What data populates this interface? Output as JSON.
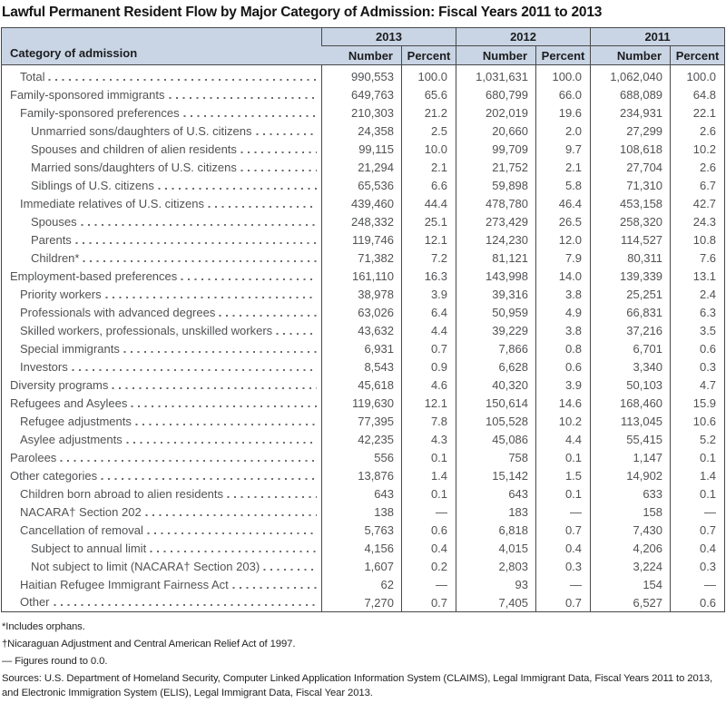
{
  "title": "Lawful Permanent Resident Flow by Major Category of Admission: Fiscal Years 2011 to 2013",
  "colors": {
    "header_bg": "#c9d5e4",
    "border": "#48494b",
    "body_text": "#515254",
    "title_text": "#141414"
  },
  "table": {
    "category_header": "Category of admission",
    "year_groups": [
      {
        "year": "2013",
        "number_label": "Number",
        "percent_label": "Percent"
      },
      {
        "year": "2012",
        "number_label": "Number",
        "percent_label": "Percent"
      },
      {
        "year": "2011",
        "number_label": "Number",
        "percent_label": "Percent"
      }
    ],
    "rows": [
      {
        "label": "Total",
        "indent": 1,
        "values": [
          "990,553",
          "100.0",
          "1,031,631",
          "100.0",
          "1,062,040",
          "100.0"
        ]
      },
      {
        "label": "Family-sponsored immigrants",
        "indent": 0,
        "values": [
          "649,763",
          "65.6",
          "680,799",
          "66.0",
          "688,089",
          "64.8"
        ]
      },
      {
        "label": "Family-sponsored preferences",
        "indent": 1,
        "values": [
          "210,303",
          "21.2",
          "202,019",
          "19.6",
          "234,931",
          "22.1"
        ]
      },
      {
        "label": "Unmarried sons/daughters of U.S. citizens",
        "indent": 2,
        "values": [
          "24,358",
          "2.5",
          "20,660",
          "2.0",
          "27,299",
          "2.6"
        ]
      },
      {
        "label": "Spouses and children of alien residents",
        "indent": 2,
        "values": [
          "99,115",
          "10.0",
          "99,709",
          "9.7",
          "108,618",
          "10.2"
        ]
      },
      {
        "label": "Married sons/daughters of U.S. citizens",
        "indent": 2,
        "values": [
          "21,294",
          "2.1",
          "21,752",
          "2.1",
          "27,704",
          "2.6"
        ]
      },
      {
        "label": "Siblings of U.S. citizens",
        "indent": 2,
        "values": [
          "65,536",
          "6.6",
          "59,898",
          "5.8",
          "71,310",
          "6.7"
        ]
      },
      {
        "label": "Immediate relatives of U.S. citizens",
        "indent": 1,
        "values": [
          "439,460",
          "44.4",
          "478,780",
          "46.4",
          "453,158",
          "42.7"
        ]
      },
      {
        "label": "Spouses",
        "indent": 2,
        "values": [
          "248,332",
          "25.1",
          "273,429",
          "26.5",
          "258,320",
          "24.3"
        ]
      },
      {
        "label": "Parents",
        "indent": 2,
        "values": [
          "119,746",
          "12.1",
          "124,230",
          "12.0",
          "114,527",
          "10.8"
        ]
      },
      {
        "label": "Children*",
        "indent": 2,
        "values": [
          "71,382",
          "7.2",
          "81,121",
          "7.9",
          "80,311",
          "7.6"
        ]
      },
      {
        "label": "Employment-based preferences",
        "indent": 0,
        "values": [
          "161,110",
          "16.3",
          "143,998",
          "14.0",
          "139,339",
          "13.1"
        ]
      },
      {
        "label": "Priority workers",
        "indent": 1,
        "values": [
          "38,978",
          "3.9",
          "39,316",
          "3.8",
          "25,251",
          "2.4"
        ]
      },
      {
        "label": "Professionals with advanced degrees",
        "indent": 1,
        "values": [
          "63,026",
          "6.4",
          "50,959",
          "4.9",
          "66,831",
          "6.3"
        ]
      },
      {
        "label": "Skilled workers, professionals, unskilled workers",
        "indent": 1,
        "values": [
          "43,632",
          "4.4",
          "39,229",
          "3.8",
          "37,216",
          "3.5"
        ]
      },
      {
        "label": "Special immigrants",
        "indent": 1,
        "values": [
          "6,931",
          "0.7",
          "7,866",
          "0.8",
          "6,701",
          "0.6"
        ]
      },
      {
        "label": "Investors",
        "indent": 1,
        "values": [
          "8,543",
          "0.9",
          "6,628",
          "0.6",
          "3,340",
          "0.3"
        ]
      },
      {
        "label": "Diversity programs",
        "indent": 0,
        "values": [
          "45,618",
          "4.6",
          "40,320",
          "3.9",
          "50,103",
          "4.7"
        ]
      },
      {
        "label": "Refugees and Asylees",
        "indent": 0,
        "values": [
          "119,630",
          "12.1",
          "150,614",
          "14.6",
          "168,460",
          "15.9"
        ]
      },
      {
        "label": "Refugee adjustments",
        "indent": 1,
        "values": [
          "77,395",
          "7.8",
          "105,528",
          "10.2",
          "113,045",
          "10.6"
        ]
      },
      {
        "label": "Asylee adjustments",
        "indent": 1,
        "values": [
          "42,235",
          "4.3",
          "45,086",
          "4.4",
          "55,415",
          "5.2"
        ]
      },
      {
        "label": "Parolees",
        "indent": 0,
        "values": [
          "556",
          "0.1",
          "758",
          "0.1",
          "1,147",
          "0.1"
        ]
      },
      {
        "label": "Other categories",
        "indent": 0,
        "values": [
          "13,876",
          "1.4",
          "15,142",
          "1.5",
          "14,902",
          "1.4"
        ]
      },
      {
        "label": "Children born abroad to alien residents",
        "indent": 1,
        "values": [
          "643",
          "0.1",
          "643",
          "0.1",
          "633",
          "0.1"
        ]
      },
      {
        "label": "NACARA† Section 202",
        "indent": 1,
        "values": [
          "138",
          "—",
          "183",
          "—",
          "158",
          "—"
        ]
      },
      {
        "label": "Cancellation of removal",
        "indent": 1,
        "values": [
          "5,763",
          "0.6",
          "6,818",
          "0.7",
          "7,430",
          "0.7"
        ]
      },
      {
        "label": "Subject to annual limit",
        "indent": 2,
        "values": [
          "4,156",
          "0.4",
          "4,015",
          "0.4",
          "4,206",
          "0.4"
        ]
      },
      {
        "label": "Not subject to limit (NACARA† Section 203)",
        "indent": 2,
        "values": [
          "1,607",
          "0.2",
          "2,803",
          "0.3",
          "3,224",
          "0.3"
        ]
      },
      {
        "label": "Haitian Refugee Immigrant Fairness Act",
        "indent": 1,
        "values": [
          "62",
          "—",
          "93",
          "—",
          "154",
          "—"
        ]
      },
      {
        "label": "Other",
        "indent": 1,
        "values": [
          "7,270",
          "0.7",
          "7,405",
          "0.7",
          "6,527",
          "0.6"
        ]
      }
    ]
  },
  "footnotes": [
    "*Includes orphans.",
    "†Nicaraguan Adjustment and Central American Relief Act of 1997.",
    "— Figures round to 0.0.",
    "Sources: U.S. Department of Homeland Security, Computer Linked Application Information System (CLAIMS), Legal Immigrant Data, Fiscal Years 2011 to 2013, and Electronic Immigration System (ELIS), Legal Immigrant Data, Fiscal Year 2013."
  ]
}
